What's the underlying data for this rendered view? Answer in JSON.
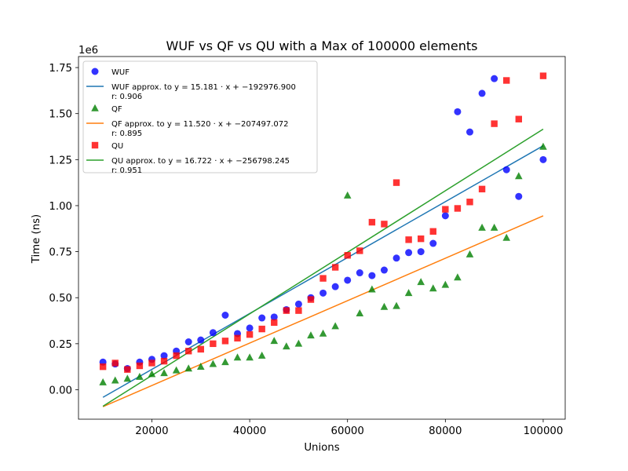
{
  "chart_data": {
    "type": "scatter",
    "title": "WUF vs QF vs QU with a Max of 100000 elements",
    "xlabel": "Unions",
    "ylabel": "Time (ns)",
    "y_offset_text": "1e6",
    "xlim": [
      5000,
      104500
    ],
    "ylim": [
      -160000,
      1810000
    ],
    "xticks": [
      20000,
      40000,
      60000,
      80000,
      100000
    ],
    "xtick_labels": [
      "20000",
      "40000",
      "60000",
      "80000",
      "100000"
    ],
    "yticks": [
      0,
      250000,
      500000,
      750000,
      1000000,
      1250000,
      1500000,
      1750000
    ],
    "ytick_labels": [
      "0.00",
      "0.25",
      "0.50",
      "0.75",
      "1.00",
      "1.25",
      "1.50",
      "1.75"
    ],
    "grid": false,
    "legend_position": "top-left",
    "x": [
      10000,
      12500,
      15000,
      17500,
      20000,
      22500,
      25000,
      27500,
      30000,
      32500,
      35000,
      37500,
      40000,
      42500,
      45000,
      47500,
      50000,
      52500,
      55000,
      57500,
      60000,
      62500,
      65000,
      67500,
      70000,
      72500,
      75000,
      77500,
      80000,
      82500,
      85000,
      87500,
      90000,
      92500,
      95000,
      100000
    ],
    "series": [
      {
        "name": "WUF",
        "marker": "circle",
        "color": "#0000ff",
        "values": [
          150000,
          140000,
          115000,
          150000,
          165000,
          185000,
          210000,
          260000,
          270000,
          310000,
          405000,
          305000,
          335000,
          390000,
          395000,
          435000,
          465000,
          500000,
          525000,
          560000,
          595000,
          635000,
          620000,
          650000,
          715000,
          745000,
          750000,
          795000,
          945000,
          1510000,
          1400000,
          1610000,
          1690000,
          1195000,
          1050000,
          1250000
        ]
      },
      {
        "name": "QF",
        "marker": "triangle",
        "color": "#008000",
        "values": [
          40000,
          50000,
          60000,
          70000,
          85000,
          90000,
          105000,
          115000,
          125000,
          140000,
          150000,
          175000,
          175000,
          185000,
          265000,
          235000,
          250000,
          295000,
          305000,
          345000,
          1055000,
          415000,
          545000,
          450000,
          455000,
          525000,
          585000,
          550000,
          570000,
          610000,
          735000,
          880000,
          880000,
          825000,
          1160000,
          1320000
        ]
      },
      {
        "name": "QU",
        "marker": "square",
        "color": "#ff0000",
        "values": [
          125000,
          145000,
          110000,
          130000,
          145000,
          155000,
          185000,
          210000,
          220000,
          250000,
          265000,
          280000,
          300000,
          330000,
          365000,
          430000,
          430000,
          490000,
          605000,
          665000,
          730000,
          755000,
          910000,
          900000,
          1125000,
          815000,
          820000,
          860000,
          980000,
          985000,
          1020000,
          1090000,
          1445000,
          1680000,
          1470000,
          1705000
        ]
      }
    ],
    "fits": [
      {
        "name": "WUF approx. to",
        "equation": "y = 15.181 · x + −192976.900",
        "r_label": "r: 0.906",
        "slope": 15.181,
        "intercept": -192976.9,
        "color": "#1f77b4"
      },
      {
        "name": "QF approx. to",
        "equation": "y = 11.520 · x + −207497.072",
        "r_label": "r: 0.895",
        "slope": 11.52,
        "intercept": -207497.072,
        "color": "#ff7f0e"
      },
      {
        "name": "QU approx. to",
        "equation": "y = 16.722 · x + −256798.245",
        "r_label": "r: 0.951",
        "slope": 16.722,
        "intercept": -256798.245,
        "color": "#2ca02c"
      }
    ]
  }
}
